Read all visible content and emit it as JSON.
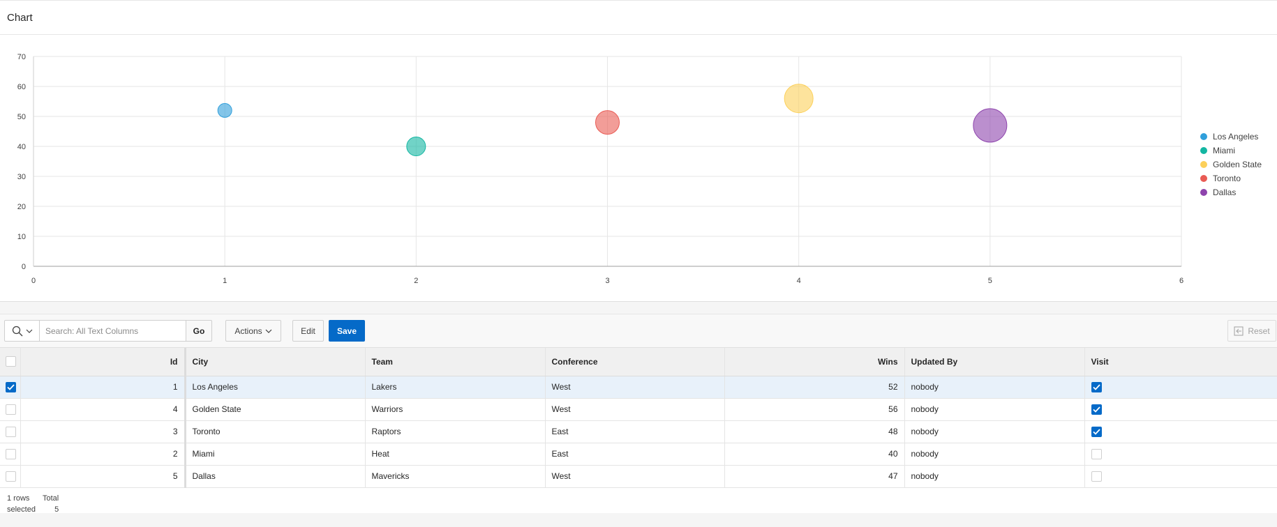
{
  "region": {
    "title": "Chart"
  },
  "chart_data": {
    "type": "scatter",
    "x_ticks": [
      0,
      1,
      2,
      3,
      4,
      5,
      6
    ],
    "y_ticks": [
      0,
      10,
      20,
      30,
      40,
      50,
      60,
      70
    ],
    "xlim": [
      0,
      6
    ],
    "ylim": [
      0,
      70
    ],
    "grid": true,
    "legend_position": "right",
    "series": [
      {
        "name": "Los Angeles",
        "x": 1,
        "y": 52,
        "size": 1,
        "color": "#309fdb"
      },
      {
        "name": "Miami",
        "x": 2,
        "y": 40,
        "size": 2,
        "color": "#13b6a2"
      },
      {
        "name": "Golden State",
        "x": 4,
        "y": 56,
        "size": 4,
        "color": "#fcd05a"
      },
      {
        "name": "Toronto",
        "x": 3,
        "y": 48,
        "size": 3,
        "color": "#e95b54"
      },
      {
        "name": "Dallas",
        "x": 5,
        "y": 47,
        "size": 5,
        "color": "#8e44ad"
      }
    ]
  },
  "toolbar": {
    "search_placeholder": "Search: All Text Columns",
    "go_label": "Go",
    "actions_label": "Actions",
    "edit_label": "Edit",
    "save_label": "Save",
    "reset_label": "Reset"
  },
  "grid": {
    "headers": {
      "id": "Id",
      "city": "City",
      "team": "Team",
      "conference": "Conference",
      "wins": "Wins",
      "updated_by": "Updated By",
      "visit": "Visit"
    },
    "rows": [
      {
        "id": "1",
        "city": "Los Angeles",
        "team": "Lakers",
        "conference": "West",
        "wins": "52",
        "updated_by": "nobody",
        "visit": true,
        "selected": true
      },
      {
        "id": "4",
        "city": "Golden State",
        "team": "Warriors",
        "conference": "West",
        "wins": "56",
        "updated_by": "nobody",
        "visit": true,
        "selected": false
      },
      {
        "id": "3",
        "city": "Toronto",
        "team": "Raptors",
        "conference": "East",
        "wins": "48",
        "updated_by": "nobody",
        "visit": true,
        "selected": false
      },
      {
        "id": "2",
        "city": "Miami",
        "team": "Heat",
        "conference": "East",
        "wins": "40",
        "updated_by": "nobody",
        "visit": false,
        "selected": false
      },
      {
        "id": "5",
        "city": "Dallas",
        "team": "Mavericks",
        "conference": "West",
        "wins": "47",
        "updated_by": "nobody",
        "visit": false,
        "selected": false
      }
    ]
  },
  "footer": {
    "selected_line1": "1 rows",
    "selected_line2": "selected",
    "total_label": "Total",
    "total_value": "5"
  }
}
